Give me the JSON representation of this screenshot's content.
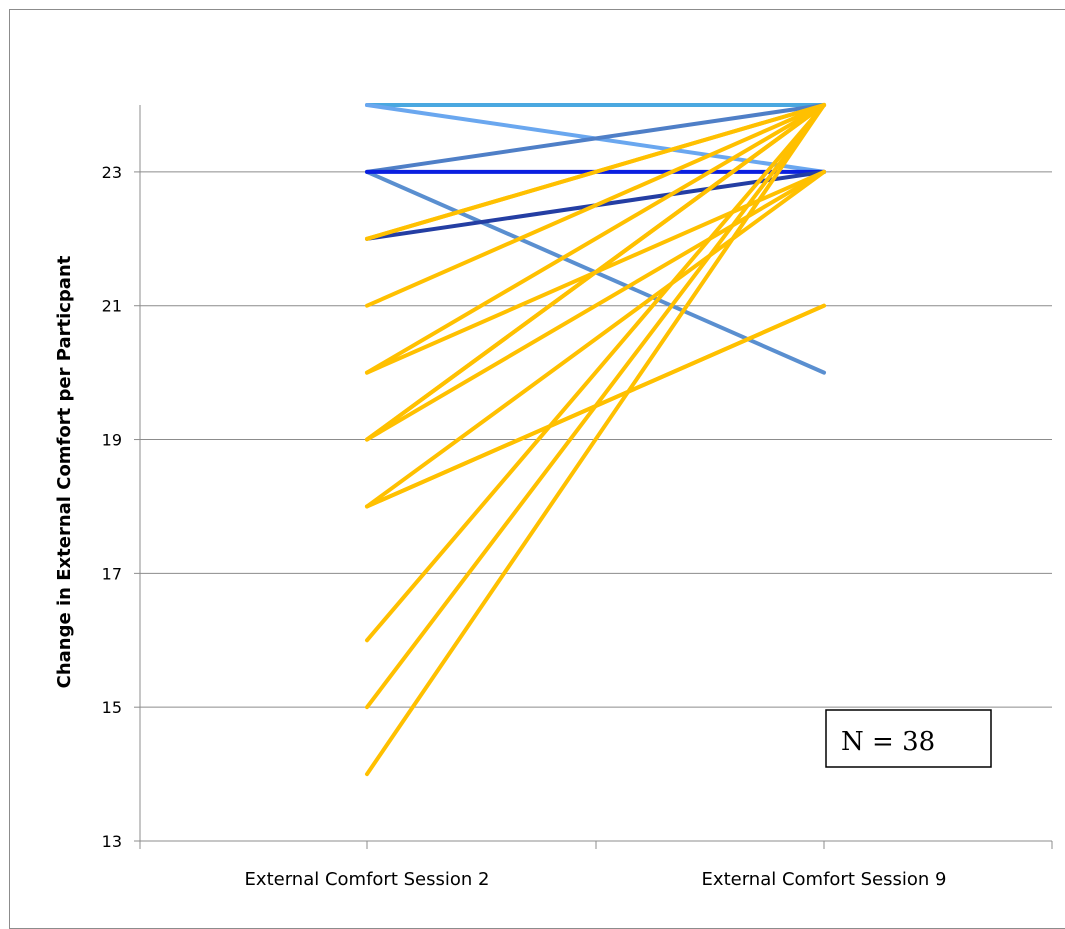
{
  "chart_data": {
    "type": "line",
    "title": "",
    "xlabel": "",
    "ylabel": "Change in External Comfort per Particpant",
    "categories": [
      "External Comfort Session 2",
      "External Comfort Session 9"
    ],
    "ylim": [
      13,
      24
    ],
    "yticks": [
      13,
      15,
      17,
      19,
      21,
      23
    ],
    "grid": true,
    "legend": "none",
    "series": [
      {
        "values": [
          24,
          24
        ],
        "color": "#4aa8e0"
      },
      {
        "values": [
          24,
          23
        ],
        "color": "#6aa7ef"
      },
      {
        "values": [
          23,
          20
        ],
        "color": "#5a8fd0"
      },
      {
        "values": [
          23,
          24
        ],
        "color": "#4f7fc7"
      },
      {
        "values": [
          23,
          23
        ],
        "color": "#0a1fe0"
      },
      {
        "values": [
          22,
          23
        ],
        "color": "#243ea3"
      },
      {
        "values": [
          22,
          24
        ],
        "color": "#ffc000"
      },
      {
        "values": [
          22,
          24
        ],
        "color": "#ffc000"
      },
      {
        "values": [
          21,
          24
        ],
        "color": "#ffc000"
      },
      {
        "values": [
          20,
          24
        ],
        "color": "#ffc000"
      },
      {
        "values": [
          20,
          23
        ],
        "color": "#ffc000"
      },
      {
        "values": [
          19,
          24
        ],
        "color": "#ffc000"
      },
      {
        "values": [
          19,
          24
        ],
        "color": "#ffc000"
      },
      {
        "values": [
          19,
          23
        ],
        "color": "#ffc000"
      },
      {
        "values": [
          18,
          21
        ],
        "color": "#ffc000"
      },
      {
        "values": [
          18,
          23
        ],
        "color": "#ffc000"
      },
      {
        "values": [
          18,
          21
        ],
        "color": "#ffc000"
      },
      {
        "values": [
          16,
          24
        ],
        "color": "#ffc000"
      },
      {
        "values": [
          15,
          24
        ],
        "color": "#ffc000"
      },
      {
        "values": [
          14,
          24
        ],
        "color": "#ffc000"
      }
    ],
    "annotation": "N = 38",
    "colors": {
      "gridline": "#8c8c8c",
      "axis": "#8c8c8c",
      "highlight": "#ffc000"
    }
  }
}
